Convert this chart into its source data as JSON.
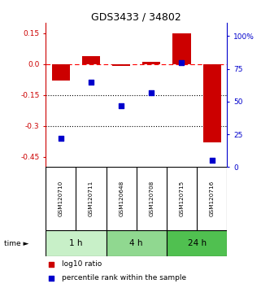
{
  "title": "GDS3433 / 34802",
  "samples": [
    "GSM120710",
    "GSM120711",
    "GSM120648",
    "GSM120708",
    "GSM120715",
    "GSM120716"
  ],
  "groups": [
    {
      "label": "1 h",
      "start": 0,
      "end": 1,
      "color": "#c8f0c8"
    },
    {
      "label": "4 h",
      "start": 2,
      "end": 3,
      "color": "#90d890"
    },
    {
      "label": "24 h",
      "start": 4,
      "end": 5,
      "color": "#50c050"
    }
  ],
  "log10_ratio": [
    -0.08,
    0.04,
    -0.01,
    0.01,
    0.15,
    -0.38
  ],
  "percentile_rank": [
    22,
    65,
    47,
    57,
    80,
    5
  ],
  "ylim_left": [
    -0.5,
    0.2
  ],
  "ylim_right": [
    0,
    110
  ],
  "yticks_left": [
    0.15,
    0.0,
    -0.15,
    -0.3,
    -0.45
  ],
  "yticks_right": [
    100,
    75,
    50,
    25,
    0
  ],
  "bar_color": "#cc0000",
  "dot_color": "#0000cc",
  "legend_labels": [
    "log10 ratio",
    "percentile rank within the sample"
  ],
  "background_color": "#ffffff",
  "title_color": "#000000",
  "left_axis_color": "#cc0000",
  "right_axis_color": "#0000cc",
  "sample_label_bg": "#c8c8c8"
}
